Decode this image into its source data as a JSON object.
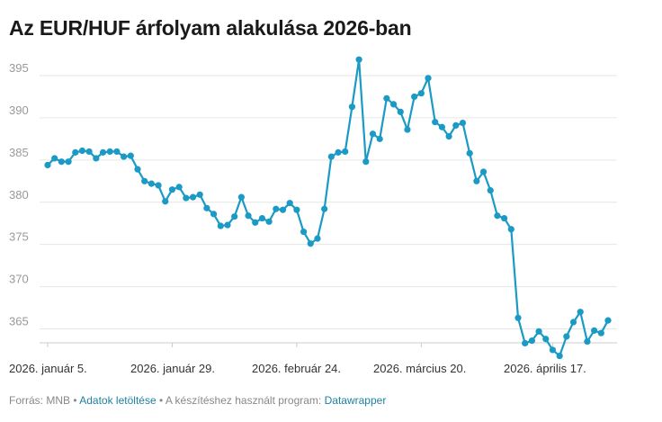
{
  "title": "Az EUR/HUF árfolyam alakulása 2026-ban",
  "footer": {
    "source_label": "Forrás: MNB",
    "separator": "•",
    "download_label": "Adatok letöltése",
    "tool_label": "A készítéshez használt program:",
    "tool_name": "Datawrapper"
  },
  "colors": {
    "line": "#1a9ac4",
    "grid": "#e6e6e6",
    "link": "#1d81a2"
  },
  "chart_data": {
    "type": "line",
    "title": "Az EUR/HUF árfolyam alakulása 2026-ban",
    "xlabel": "",
    "ylabel": "",
    "ylim": [
      362,
      397
    ],
    "yticks": [
      365,
      370,
      375,
      380,
      385,
      390,
      395
    ],
    "grid": true,
    "xtick_labels": [
      {
        "label": "2026. január 5.",
        "index": 0
      },
      {
        "label": "2026. január 29.",
        "index": 18
      },
      {
        "label": "2026. február 24.",
        "index": 36
      },
      {
        "label": "2026. március 20.",
        "index": 54
      },
      {
        "label": "2026. április 17.",
        "index": 73
      }
    ],
    "series": [
      {
        "markers": true,
        "values": [
          384.4,
          385.2,
          384.8,
          384.8,
          385.9,
          386.1,
          386.0,
          385.2,
          385.9,
          386.0,
          386.0,
          385.4,
          385.5,
          383.9,
          382.5,
          382.2,
          382.0,
          380.1,
          381.5,
          381.8,
          380.5,
          380.6,
          380.9,
          379.3,
          378.6,
          377.2,
          377.3,
          378.3,
          380.6,
          378.4,
          377.6,
          378.1,
          377.7,
          379.2,
          379.1,
          379.9,
          379.1,
          376.5,
          375.1,
          375.7,
          379.2,
          385.4,
          385.9,
          386.0,
          391.3,
          396.9,
          384.8,
          388.1,
          387.5,
          392.3,
          391.6,
          390.7,
          388.6,
          392.5,
          392.9,
          394.7,
          389.5,
          388.9,
          387.8,
          389.1,
          389.4,
          385.8,
          382.5,
          383.6,
          381.4,
          378.4,
          378.1,
          376.8,
          366.3,
          363.3,
          363.6,
          364.7,
          363.8,
          362.5,
          361.8,
          364.1,
          365.8,
          367.0,
          363.5,
          364.8,
          364.5,
          366.0
        ]
      }
    ]
  }
}
